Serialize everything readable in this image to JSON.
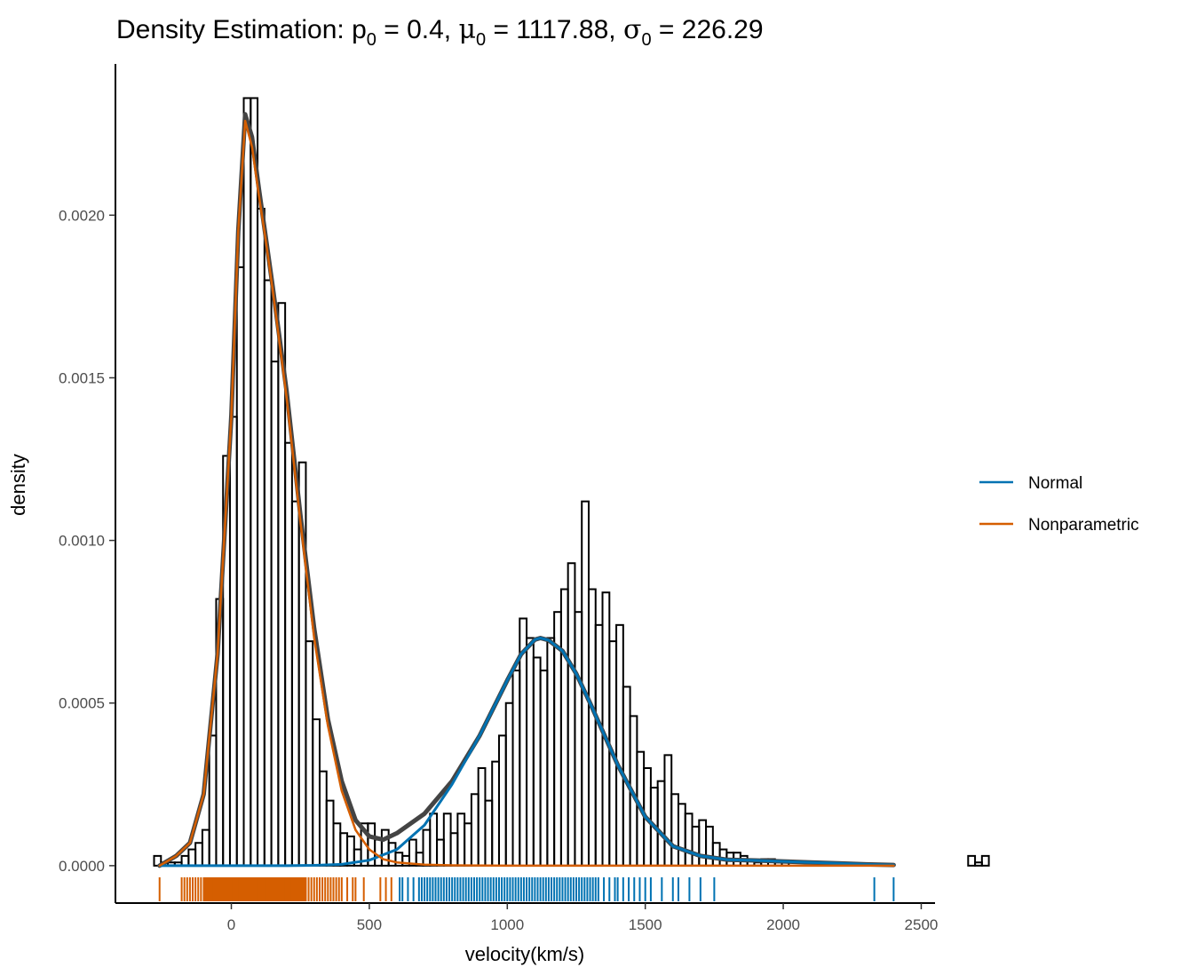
{
  "chart_data": {
    "type": "histogram",
    "title": {
      "prefix": "Density Estimation: ",
      "p_symbol": "p",
      "p_sub": "0",
      "p_value": " = 0.4, ",
      "mu_symbol": "μ",
      "mu_sub": "0",
      "mu_value": " = 1117.88, ",
      "sigma_symbol": "σ",
      "sigma_sub": "0",
      "sigma_value": " = 226.29"
    },
    "xlabel": "velocity(km/s)",
    "ylabel": "density",
    "xlim": [
      -420,
      2550
    ],
    "ylim": [
      -0.000115,
      0.002465
    ],
    "x_ticks": [
      0,
      500,
      1000,
      1500,
      2000,
      2500
    ],
    "x_tick_labels": [
      "0",
      "500",
      "1000",
      "1500",
      "2000",
      "2500"
    ],
    "y_ticks": [
      0,
      0.0005,
      0.001,
      0.0015,
      0.002
    ],
    "y_tick_labels": [
      "0.0000",
      "0.0005",
      "0.0010",
      "0.0015",
      "0.0020"
    ],
    "grid": false,
    "legend_position": "right",
    "histogram": {
      "bin_start": -280,
      "bin_width": 25,
      "densities": [
        3e-05,
        1e-05,
        1e-05,
        1e-05,
        3e-05,
        5e-05,
        7e-05,
        0.00011,
        0.0004,
        0.00082,
        0.00126,
        0.00138,
        0.00184,
        0.00236,
        0.00236,
        0.00202,
        0.0018,
        0.00155,
        0.00173,
        0.0013,
        0.00112,
        0.00124,
        0.00069,
        0.00045,
        0.00029,
        0.0002,
        0.00013,
        0.0001,
        9e-05,
        5e-05,
        0.00013,
        0.00013,
        8e-05,
        0.00011,
        7e-05,
        4e-05,
        3e-05,
        8e-05,
        4e-05,
        0.00011,
        0.00016,
        8e-05,
        0.00016,
        0.0001,
        0.00016,
        0.00013,
        0.00022,
        0.0003,
        0.0002,
        0.00032,
        0.0004,
        0.0005,
        0.0006,
        0.00076,
        0.0007,
        0.00064,
        0.0006,
        0.0007,
        0.00078,
        0.00085,
        0.00093,
        0.00078,
        0.00112,
        0.00085,
        0.00074,
        0.00084,
        0.00069,
        0.00074,
        0.00055,
        0.00046,
        0.00035,
        0.0003,
        0.00024,
        0.00026,
        0.00034,
        0.00022,
        0.00019,
        0.00016,
        0.00012,
        0.00014,
        0.00012,
        7e-05,
        5e-05,
        4e-05,
        4e-05,
        3e-05,
        2e-05,
        1e-05,
        2e-05,
        2e-05,
        1e-05,
        1e-05,
        0,
        0,
        0,
        0,
        0,
        0,
        0,
        0,
        0,
        0,
        0,
        0,
        0,
        0,
        0,
        0,
        0,
        0,
        0,
        0,
        0,
        0,
        0,
        0,
        0,
        0,
        3e-05,
        1e-05,
        3e-05
      ]
    },
    "series": [
      {
        "name": "Normal",
        "color": "#0072B2",
        "x": [
          -260,
          -100,
          0,
          100,
          200,
          300,
          400,
          500,
          600,
          700,
          800,
          900,
          1000,
          1050,
          1100,
          1120,
          1150,
          1200,
          1250,
          1300,
          1400,
          1500,
          1600,
          1700,
          1800,
          1900,
          2000,
          2100,
          2200,
          2300,
          2400
        ],
        "y": [
          0,
          0,
          0,
          0,
          0,
          1e-06,
          4e-06,
          1.7e-05,
          5e-05,
          0.000125,
          0.00025,
          0.0004,
          0.00057,
          0.00065,
          0.000695,
          0.0007,
          0.000693,
          0.00066,
          0.00059,
          0.0005,
          0.00031,
          0.00015,
          6e-05,
          3e-05,
          1.8e-05,
          1.6e-05,
          1.3e-05,
          1e-05,
          7e-06,
          4e-06,
          2e-06
        ]
      },
      {
        "name": "Nonparametric",
        "color": "#D55E00",
        "x": [
          -260,
          -200,
          -150,
          -100,
          -50,
          0,
          25,
          50,
          75,
          100,
          125,
          150,
          200,
          250,
          300,
          350,
          400,
          450,
          500,
          550,
          600,
          700,
          800,
          1000,
          1500,
          2000,
          2400
        ],
        "y": [
          0,
          3e-05,
          7e-05,
          0.00022,
          0.00065,
          0.00138,
          0.00195,
          0.00229,
          0.00221,
          0.00206,
          0.00192,
          0.00177,
          0.00144,
          0.00106,
          0.0007,
          0.00043,
          0.00023,
          0.00011,
          5e-05,
          2e-05,
          1e-05,
          3e-06,
          1e-06,
          0,
          0,
          0,
          0
        ]
      },
      {
        "name": "",
        "color": "#444444",
        "x": [
          -260,
          -200,
          -150,
          -100,
          -50,
          0,
          25,
          50,
          75,
          100,
          125,
          150,
          200,
          250,
          300,
          350,
          400,
          450,
          500,
          550,
          600,
          700,
          800,
          900,
          1000,
          1050,
          1100,
          1120,
          1150,
          1200,
          1250,
          1300,
          1400,
          1500,
          1600,
          1700,
          1800,
          1900,
          2000,
          2100,
          2200,
          2300,
          2400
        ],
        "y": [
          0,
          3e-05,
          7e-05,
          0.00022,
          0.00065,
          0.00138,
          0.00195,
          0.00231,
          0.00224,
          0.00208,
          0.00193,
          0.00178,
          0.00146,
          0.00108,
          0.00073,
          0.00045,
          0.00026,
          0.00014,
          9e-05,
          8e-05,
          0.0001,
          0.00016,
          0.00026,
          0.0004,
          0.00057,
          0.00065,
          0.000695,
          0.0007,
          0.000693,
          0.00066,
          0.00059,
          0.0005,
          0.00031,
          0.00015,
          6e-05,
          3e-05,
          1.8e-05,
          1.6e-05,
          1.3e-05,
          1e-05,
          7e-06,
          4e-06,
          2e-06
        ]
      }
    ],
    "rug": {
      "Nonparametric": [
        -260,
        -180,
        -170,
        -160,
        -150,
        -140,
        -130,
        -120,
        -110,
        -100,
        -95,
        -90,
        -85,
        -80,
        -75,
        -70,
        -65,
        -60,
        -55,
        -50,
        -45,
        -40,
        -35,
        -30,
        -25,
        -20,
        -15,
        -10,
        -5,
        0,
        5,
        10,
        15,
        20,
        25,
        30,
        35,
        40,
        45,
        50,
        55,
        60,
        65,
        70,
        75,
        80,
        85,
        90,
        95,
        100,
        105,
        110,
        115,
        120,
        125,
        130,
        135,
        140,
        145,
        150,
        155,
        160,
        165,
        170,
        175,
        180,
        185,
        190,
        195,
        200,
        205,
        210,
        215,
        220,
        225,
        230,
        235,
        240,
        245,
        250,
        255,
        260,
        265,
        270,
        280,
        290,
        300,
        310,
        320,
        330,
        340,
        350,
        360,
        370,
        380,
        390,
        400,
        420,
        440,
        450,
        480,
        540,
        560,
        580
      ],
      "Normal": [
        610,
        620,
        640,
        660,
        680,
        690,
        700,
        710,
        720,
        730,
        740,
        750,
        760,
        770,
        780,
        790,
        800,
        810,
        820,
        830,
        840,
        850,
        860,
        870,
        880,
        890,
        900,
        910,
        920,
        930,
        940,
        950,
        960,
        970,
        980,
        990,
        1000,
        1010,
        1020,
        1030,
        1040,
        1050,
        1060,
        1070,
        1080,
        1090,
        1100,
        1110,
        1120,
        1130,
        1140,
        1150,
        1160,
        1170,
        1180,
        1190,
        1200,
        1210,
        1220,
        1230,
        1240,
        1250,
        1260,
        1270,
        1280,
        1290,
        1300,
        1310,
        1320,
        1330,
        1350,
        1370,
        1390,
        1400,
        1420,
        1440,
        1460,
        1480,
        1500,
        1520,
        1560,
        1600,
        1620,
        1660,
        1700,
        1750,
        2330,
        2400
      ]
    }
  }
}
